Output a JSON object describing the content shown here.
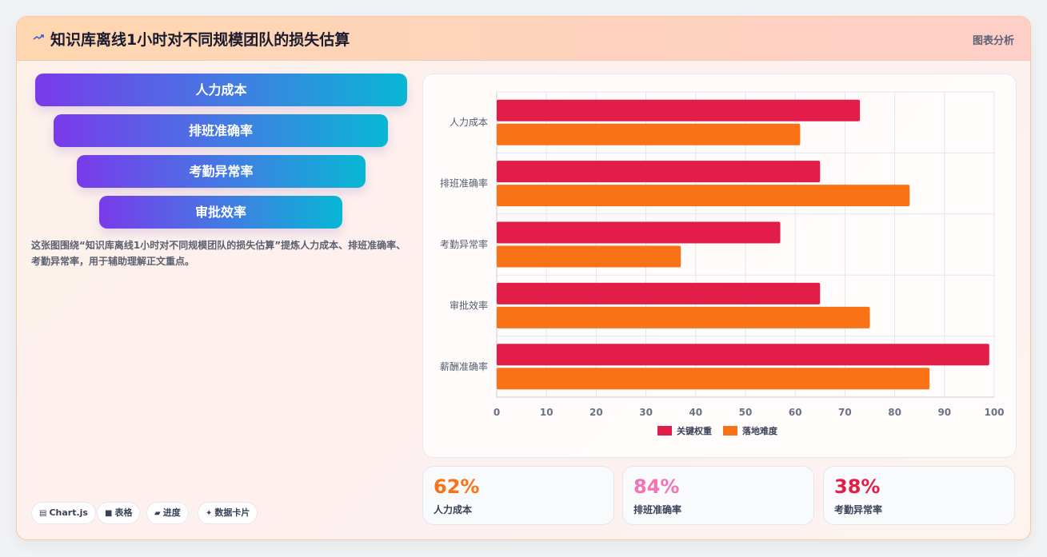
{
  "header": {
    "title": "知识库离线1小时对不同规模团队的损失估算",
    "tag": "图表分析",
    "icon": "chart-arrow-icon"
  },
  "funnel": {
    "items": [
      "人力成本",
      "排班准确率",
      "考勤异常率",
      "审批效率"
    ]
  },
  "description": "这张图围绕“知识库离线1小时对不同规模团队的损失估算”提炼人力成本、排班准确率、考勤异常率，用于辅助理解正文重点。",
  "badges": [
    {
      "icon": "▤",
      "label": "Chart.js"
    },
    {
      "icon": "■",
      "label": "表格"
    },
    {
      "icon": "▰",
      "label": "进度"
    },
    {
      "icon": "✦",
      "label": "数据卡片"
    }
  ],
  "chart_data": {
    "type": "bar",
    "orientation": "horizontal",
    "categories": [
      "人力成本",
      "排班准确率",
      "考勤异常率",
      "审批效率",
      "薪酬准确率"
    ],
    "series": [
      {
        "name": "关键权重",
        "color": "#e11d48",
        "values": [
          73,
          65,
          57,
          65,
          99
        ]
      },
      {
        "name": "落地难度",
        "color": "#f97316",
        "values": [
          61,
          83,
          37,
          75,
          87
        ]
      }
    ],
    "xlim": [
      0,
      100
    ],
    "xticks": [
      "0",
      "10",
      "20",
      "30",
      "40",
      "50",
      "60",
      "70",
      "80",
      "90",
      "100"
    ],
    "grid": true,
    "legend": "bottom"
  },
  "stats": [
    {
      "value": "62%",
      "label": "人力成本",
      "color": "#f97316"
    },
    {
      "value": "84%",
      "label": "排班准确率",
      "color": "#f472b6"
    },
    {
      "value": "38%",
      "label": "考勤异常率",
      "color": "#e11d48"
    }
  ]
}
